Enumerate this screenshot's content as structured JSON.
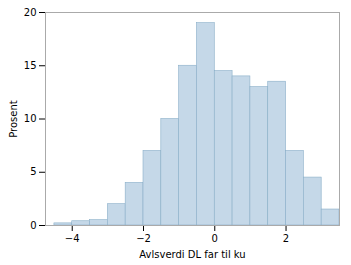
{
  "chart_data": {
    "type": "histogram",
    "bins": [
      -4.5,
      -4.0,
      -3.5,
      -3.0,
      -2.5,
      -2.0,
      -1.5,
      -1.0,
      -0.5,
      0.0,
      0.5,
      1.0,
      1.5,
      2.0,
      2.5,
      3.0,
      3.5
    ],
    "values": [
      0.2,
      0.4,
      0.5,
      2.0,
      4.0,
      7.0,
      10.0,
      15.0,
      19.0,
      14.5,
      14.0,
      13.0,
      13.5,
      7.0,
      4.5,
      1.5
    ],
    "color": "#c5d8e8",
    "xlabel": "Avlsverdi DL far til ku",
    "ylabel": "Prosent",
    "xlim": [
      -4.75,
      3.5
    ],
    "xticks": [
      -4,
      -2,
      0,
      2
    ],
    "ylim": [
      0,
      20
    ],
    "yticks": [
      0,
      5,
      10,
      15,
      20
    ],
    "grid": false
  }
}
